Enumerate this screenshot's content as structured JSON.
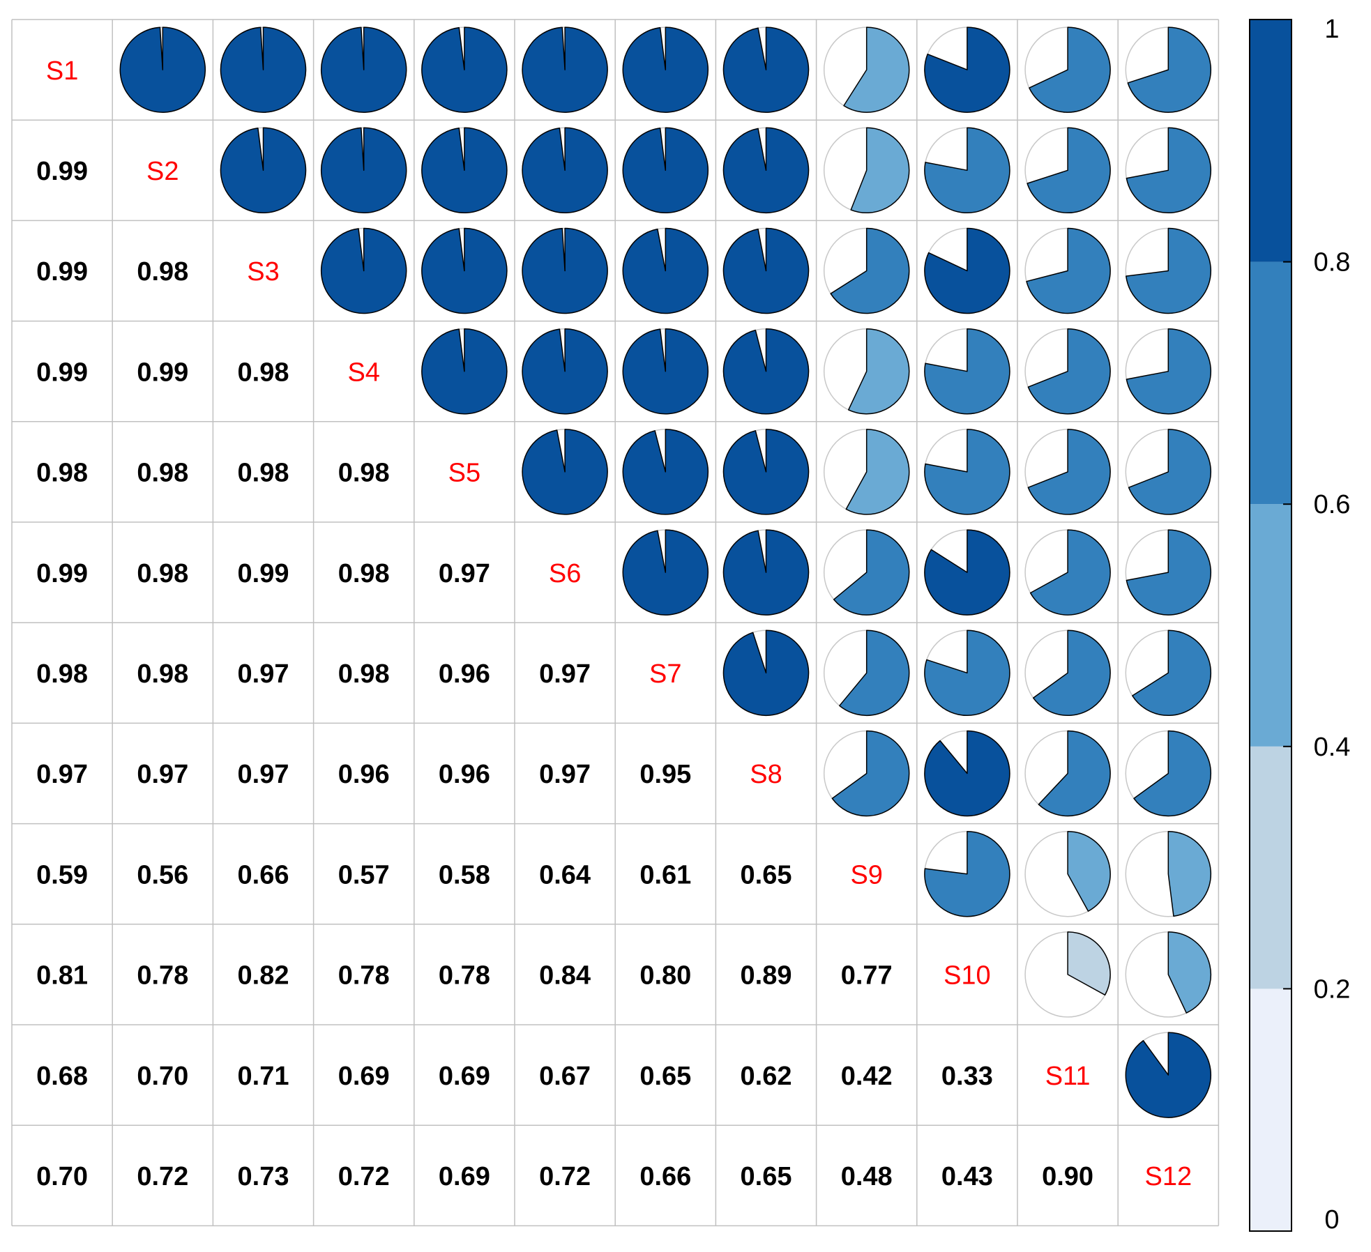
{
  "chart_data": {
    "type": "heatmap",
    "title": "",
    "style": "correlation matrix: lower triangle shows numeric coefficients, diagonal shows variable names, upper triangle shows pie glyphs whose filled fraction equals the coefficient",
    "variables": [
      "S1",
      "S2",
      "S3",
      "S4",
      "S5",
      "S6",
      "S7",
      "S8",
      "S9",
      "S10",
      "S11",
      "S12"
    ],
    "lower_labels": [
      [],
      [
        "0.99"
      ],
      [
        "0.99",
        "0.98"
      ],
      [
        "0.99",
        "0.99",
        "0.98"
      ],
      [
        "0.98",
        "0.98",
        "0.98",
        "0.98"
      ],
      [
        "0.99",
        "0.98",
        "0.99",
        "0.98",
        "0.97"
      ],
      [
        "0.98",
        "0.98",
        "0.97",
        "0.98",
        "0.96",
        "0.97"
      ],
      [
        "0.97",
        "0.97",
        "0.97",
        "0.96",
        "0.96",
        "0.97",
        "0.95"
      ],
      [
        "0.59",
        "0.56",
        "0.66",
        "0.57",
        "0.58",
        "0.64",
        "0.61",
        "0.65"
      ],
      [
        "0.81",
        "0.78",
        "0.82",
        "0.78",
        "0.78",
        "0.84",
        "0.80",
        "0.89",
        "0.77"
      ],
      [
        "0.68",
        "0.70",
        "0.71",
        "0.69",
        "0.69",
        "0.67",
        "0.65",
        "0.62",
        "0.42",
        "0.33"
      ],
      [
        "0.70",
        "0.72",
        "0.73",
        "0.72",
        "0.69",
        "0.72",
        "0.66",
        "0.65",
        "0.48",
        "0.43",
        "0.90"
      ]
    ],
    "value_range": [
      0,
      1
    ],
    "colorbar": {
      "position": "right",
      "ticks": [
        "0",
        "0.2",
        "0.4",
        "0.6",
        "0.8",
        "1"
      ],
      "bins": [
        {
          "from": 0.0,
          "to": 0.2,
          "color": "#EBF0FA"
        },
        {
          "from": 0.2,
          "to": 0.4,
          "color": "#BDD3E3"
        },
        {
          "from": 0.4,
          "to": 0.6,
          "color": "#6AAAD4"
        },
        {
          "from": 0.6,
          "to": 0.8,
          "color": "#3380BC"
        },
        {
          "from": 0.8,
          "to": 1.0,
          "color": "#08519C"
        }
      ]
    },
    "grid": true,
    "legend": "right"
  },
  "colors": {
    "diagonal_label": "#FF0000",
    "value_text": "#000000",
    "grid_line": "#C0C0C0",
    "pie_outline": "#000000",
    "pie_empty_outline": "#C8C8C8"
  }
}
